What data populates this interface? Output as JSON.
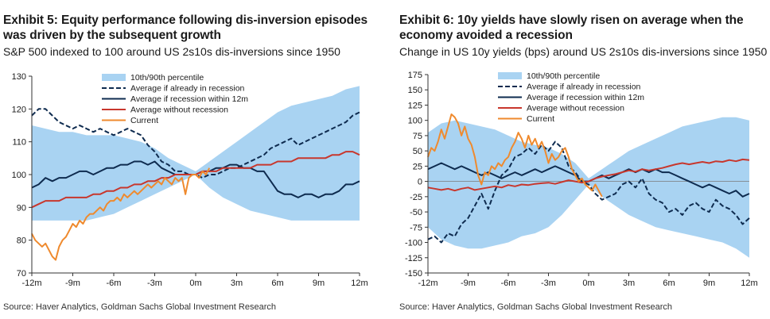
{
  "panels": [
    {
      "title": "Exhibit 5: Equity performance following dis-inversion episodes was driven by the subsequent growth",
      "subtitle": "S&P 500 indexed to 100 around US 2s10s dis-inversions since 1950",
      "source": "Source: Haver Analytics, Goldman Sachs Global Investment Research"
    },
    {
      "title": "Exhibit 6: 10y yields have slowly risen on average when the economy avoided a recession",
      "subtitle": "Change in US 10y yields (bps) around US 2s10s dis-inversions since 1950",
      "source": "Source: Haver Analytics, Goldman Sachs Global Investment Research"
    }
  ],
  "colors": {
    "band": "#a9d3f2",
    "already": "#0e2b4f",
    "within": "#0e2b4f",
    "without": "#c8372d",
    "current": "#ef8a2e"
  },
  "chart_data": [
    {
      "type": "line",
      "xlabel": "",
      "ylabel": "",
      "x_ticks": [
        "-12m",
        "-9m",
        "-6m",
        "-3m",
        "0m",
        "3m",
        "6m",
        "9m",
        "12m"
      ],
      "xlim": [
        -12,
        12
      ],
      "ylim": [
        70,
        130
      ],
      "y_ticks": [
        "130",
        "120",
        "110",
        "100",
        "90",
        "80",
        "70"
      ],
      "grid": false,
      "legend_position": "top-center",
      "legend": [
        "10th/90th percentile",
        "Average if already in recession",
        "Average if recession within 12m",
        "Average without recession",
        "Current"
      ],
      "band": {
        "name": "10th/90th percentile",
        "x": [
          -12,
          -11,
          -10,
          -9,
          -8,
          -7,
          -6,
          -5,
          -4,
          -3,
          -2,
          -1,
          0,
          1,
          2,
          3,
          4,
          5,
          6,
          7,
          8,
          9,
          10,
          11,
          12
        ],
        "upper": [
          115,
          114,
          113,
          113,
          112,
          112,
          112,
          111,
          110,
          108,
          105,
          103,
          101,
          104,
          107,
          110,
          113,
          116,
          119,
          121,
          122,
          123,
          124,
          126,
          127
        ],
        "lower": [
          86,
          86,
          86,
          86,
          86,
          87,
          88,
          90,
          92,
          94,
          96,
          98,
          100,
          96,
          93,
          91,
          89,
          88,
          87,
          86,
          86,
          86,
          86,
          86,
          86
        ]
      },
      "series": [
        {
          "name": "Average if already in recession",
          "style": "dashed",
          "x": [
            -12,
            -11.5,
            -11,
            -10.5,
            -10,
            -9.5,
            -9,
            -8.5,
            -8,
            -7.5,
            -7,
            -6.5,
            -6,
            -5.5,
            -5,
            -4.5,
            -4,
            -3.5,
            -3,
            -2.5,
            -2,
            -1.5,
            -1,
            -0.5,
            0,
            0.5,
            1,
            1.5,
            2,
            2.5,
            3,
            3.5,
            4,
            4.5,
            5,
            5.5,
            6,
            6.5,
            7,
            7.5,
            8,
            8.5,
            9,
            9.5,
            10,
            10.5,
            11,
            11.5,
            12
          ],
          "values": [
            118,
            120,
            120,
            118,
            116,
            115,
            114,
            115,
            114,
            113,
            114,
            113,
            112,
            113,
            114,
            113,
            112,
            109,
            107,
            104,
            103,
            101,
            101,
            100,
            100,
            99,
            100,
            100,
            101,
            102,
            102,
            103,
            104,
            105,
            106,
            108,
            109,
            110,
            111,
            109,
            110,
            111,
            112,
            113,
            114,
            115,
            116,
            118,
            119
          ]
        },
        {
          "name": "Average if recession within 12m",
          "style": "solid",
          "x": [
            -12,
            -11.5,
            -11,
            -10.5,
            -10,
            -9.5,
            -9,
            -8.5,
            -8,
            -7.5,
            -7,
            -6.5,
            -6,
            -5.5,
            -5,
            -4.5,
            -4,
            -3.5,
            -3,
            -2.5,
            -2,
            -1.5,
            -1,
            -0.5,
            0,
            0.5,
            1,
            1.5,
            2,
            2.5,
            3,
            3.5,
            4,
            4.5,
            5,
            5.5,
            6,
            6.5,
            7,
            7.5,
            8,
            8.5,
            9,
            9.5,
            10,
            10.5,
            11,
            11.5,
            12
          ],
          "values": [
            96,
            97,
            99,
            98,
            99,
            99,
            100,
            101,
            101,
            100,
            101,
            102,
            102,
            103,
            103,
            104,
            104,
            103,
            104,
            102,
            101,
            100,
            100,
            100,
            100,
            101,
            101,
            102,
            102,
            103,
            103,
            102,
            102,
            101,
            101,
            98,
            95,
            94,
            94,
            93,
            94,
            94,
            93,
            94,
            94,
            95,
            97,
            97,
            98
          ]
        },
        {
          "name": "Average without recession",
          "style": "solid",
          "x": [
            -12,
            -11.5,
            -11,
            -10.5,
            -10,
            -9.5,
            -9,
            -8.5,
            -8,
            -7.5,
            -7,
            -6.5,
            -6,
            -5.5,
            -5,
            -4.5,
            -4,
            -3.5,
            -3,
            -2.5,
            -2,
            -1.5,
            -1,
            -0.5,
            0,
            0.5,
            1,
            1.5,
            2,
            2.5,
            3,
            3.5,
            4,
            4.5,
            5,
            5.5,
            6,
            6.5,
            7,
            7.5,
            8,
            8.5,
            9,
            9.5,
            10,
            10.5,
            11,
            11.5,
            12
          ],
          "values": [
            90,
            91,
            92,
            92,
            92,
            93,
            93,
            93,
            93,
            94,
            94,
            95,
            95,
            96,
            96,
            97,
            97,
            98,
            98,
            99,
            99,
            100,
            100,
            100,
            100,
            101,
            101,
            101,
            102,
            102,
            102,
            102,
            102,
            103,
            103,
            103,
            104,
            104,
            104,
            105,
            105,
            105,
            105,
            105,
            106,
            106,
            107,
            107,
            106
          ]
        },
        {
          "name": "Current",
          "style": "solid",
          "x": [
            -12,
            -11.75,
            -11.5,
            -11.25,
            -11,
            -10.75,
            -10.5,
            -10.25,
            -10,
            -9.75,
            -9.5,
            -9.25,
            -9,
            -8.75,
            -8.5,
            -8.25,
            -8,
            -7.75,
            -7.5,
            -7.25,
            -7,
            -6.75,
            -6.5,
            -6.25,
            -6,
            -5.75,
            -5.5,
            -5.25,
            -5,
            -4.75,
            -4.5,
            -4.25,
            -4,
            -3.75,
            -3.5,
            -3.25,
            -3,
            -2.75,
            -2.5,
            -2.25,
            -2,
            -1.75,
            -1.5,
            -1.25,
            -1,
            -0.75,
            -0.5,
            -0.25,
            0,
            0.25,
            0.5,
            0.75,
            1
          ],
          "values": [
            82,
            80,
            79,
            78,
            79,
            77,
            75,
            74,
            78,
            80,
            81,
            83,
            85,
            84,
            86,
            85,
            87,
            88,
            88,
            89,
            90,
            89,
            91,
            92,
            92,
            93,
            92,
            94,
            93,
            94,
            95,
            94,
            95,
            96,
            97,
            96,
            97,
            98,
            97,
            99,
            98,
            97,
            99,
            98,
            99,
            94,
            99,
            100,
            100,
            99,
            101,
            100,
            102
          ]
        }
      ]
    },
    {
      "type": "line",
      "xlabel": "",
      "ylabel": "",
      "x_ticks": [
        "-12m",
        "-9m",
        "-6m",
        "-3m",
        "0m",
        "3m",
        "6m",
        "9m",
        "12m"
      ],
      "xlim": [
        -12,
        12
      ],
      "ylim": [
        -150,
        175
      ],
      "y_ticks": [
        "175",
        "150",
        "125",
        "100",
        "75",
        "50",
        "25",
        "0",
        "-25",
        "-50",
        "-75",
        "-100",
        "-125",
        "-150"
      ],
      "grid": false,
      "legend_position": "top-center",
      "legend": [
        "10th/90th percentile",
        "Average if already in recession",
        "Average if recession within 12m",
        "Average without recession",
        "Current"
      ],
      "band": {
        "name": "10th/90th percentile",
        "x": [
          -12,
          -11,
          -10,
          -9,
          -8,
          -7,
          -6,
          -5,
          -4,
          -3,
          -2,
          -1,
          0,
          1,
          2,
          3,
          4,
          5,
          6,
          7,
          8,
          9,
          10,
          11,
          12
        ],
        "upper": [
          80,
          95,
          100,
          95,
          90,
          85,
          75,
          65,
          60,
          55,
          45,
          30,
          5,
          20,
          35,
          50,
          60,
          70,
          80,
          90,
          95,
          100,
          105,
          105,
          100
        ],
        "lower": [
          -75,
          -95,
          -105,
          -110,
          -110,
          -105,
          -100,
          -90,
          -85,
          -75,
          -55,
          -30,
          -5,
          -25,
          -40,
          -55,
          -65,
          -75,
          -80,
          -85,
          -90,
          -95,
          -100,
          -110,
          -125
        ]
      },
      "series": [
        {
          "name": "Average if already in recession",
          "style": "dashed",
          "x": [
            -12,
            -11.5,
            -11,
            -10.5,
            -10,
            -9.5,
            -9,
            -8.5,
            -8,
            -7.5,
            -7,
            -6.5,
            -6,
            -5.5,
            -5,
            -4.5,
            -4,
            -3.5,
            -3,
            -2.5,
            -2,
            -1.5,
            -1,
            -0.5,
            0,
            0.5,
            1,
            1.5,
            2,
            2.5,
            3,
            3.5,
            4,
            4.5,
            5,
            5.5,
            6,
            6.5,
            7,
            7.5,
            8,
            8.5,
            9,
            9.5,
            10,
            10.5,
            11,
            11.5,
            12
          ],
          "values": [
            -95,
            -90,
            -100,
            -85,
            -90,
            -70,
            -60,
            -40,
            -20,
            -45,
            -15,
            10,
            20,
            40,
            45,
            55,
            45,
            60,
            50,
            65,
            55,
            25,
            15,
            0,
            -5,
            -20,
            -30,
            -25,
            -20,
            -5,
            0,
            -10,
            5,
            -20,
            -30,
            -35,
            -50,
            -45,
            -55,
            -40,
            -35,
            -45,
            -50,
            -30,
            -40,
            -45,
            -55,
            -70,
            -60
          ]
        },
        {
          "name": "Average if recession within 12m",
          "style": "solid",
          "x": [
            -12,
            -11.5,
            -11,
            -10.5,
            -10,
            -9.5,
            -9,
            -8.5,
            -8,
            -7.5,
            -7,
            -6.5,
            -6,
            -5.5,
            -5,
            -4.5,
            -4,
            -3.5,
            -3,
            -2.5,
            -2,
            -1.5,
            -1,
            -0.5,
            0,
            0.5,
            1,
            1.5,
            2,
            2.5,
            3,
            3.5,
            4,
            4.5,
            5,
            5.5,
            6,
            6.5,
            7,
            7.5,
            8,
            8.5,
            9,
            9.5,
            10,
            10.5,
            11,
            11.5,
            12
          ],
          "values": [
            20,
            25,
            30,
            25,
            20,
            25,
            20,
            15,
            10,
            15,
            10,
            5,
            10,
            15,
            10,
            15,
            20,
            15,
            20,
            25,
            20,
            15,
            10,
            0,
            0,
            5,
            10,
            5,
            10,
            15,
            20,
            15,
            20,
            15,
            20,
            15,
            15,
            10,
            5,
            0,
            -5,
            -10,
            -5,
            -10,
            -15,
            -20,
            -15,
            -25,
            -20
          ]
        },
        {
          "name": "Average without recession",
          "style": "solid",
          "x": [
            -12,
            -11.5,
            -11,
            -10.5,
            -10,
            -9.5,
            -9,
            -8.5,
            -8,
            -7.5,
            -7,
            -6.5,
            -6,
            -5.5,
            -5,
            -4.5,
            -4,
            -3.5,
            -3,
            -2.5,
            -2,
            -1.5,
            -1,
            -0.5,
            0,
            0.5,
            1,
            1.5,
            2,
            2.5,
            3,
            3.5,
            4,
            4.5,
            5,
            5.5,
            6,
            6.5,
            7,
            7.5,
            8,
            8.5,
            9,
            9.5,
            10,
            10.5,
            11,
            11.5,
            12
          ],
          "values": [
            -10,
            -12,
            -14,
            -12,
            -15,
            -12,
            -10,
            -14,
            -12,
            -10,
            -8,
            -10,
            -6,
            -8,
            -5,
            -6,
            -4,
            -3,
            -2,
            -4,
            -1,
            2,
            0,
            -2,
            0,
            5,
            8,
            10,
            12,
            15,
            18,
            16,
            20,
            18,
            20,
            22,
            25,
            28,
            30,
            28,
            30,
            32,
            30,
            33,
            32,
            35,
            33,
            36,
            35
          ]
        },
        {
          "name": "Current",
          "style": "solid",
          "x": [
            -12,
            -11.75,
            -11.5,
            -11.25,
            -11,
            -10.75,
            -10.5,
            -10.25,
            -10,
            -9.75,
            -9.5,
            -9.25,
            -9,
            -8.75,
            -8.5,
            -8.25,
            -8,
            -7.75,
            -7.5,
            -7.25,
            -7,
            -6.75,
            -6.5,
            -6.25,
            -6,
            -5.75,
            -5.5,
            -5.25,
            -5,
            -4.75,
            -4.5,
            -4.25,
            -4,
            -3.75,
            -3.5,
            -3.25,
            -3,
            -2.75,
            -2.5,
            -2.25,
            -2,
            -1.75,
            -1.5,
            -1.25,
            -1,
            -0.75,
            -0.5,
            -0.25,
            0,
            0.25,
            0.5,
            0.75,
            1
          ],
          "values": [
            40,
            55,
            50,
            65,
            85,
            70,
            90,
            110,
            105,
            95,
            75,
            90,
            70,
            60,
            40,
            10,
            -5,
            15,
            10,
            25,
            20,
            30,
            25,
            35,
            40,
            55,
            65,
            80,
            70,
            55,
            75,
            60,
            70,
            55,
            65,
            50,
            30,
            45,
            35,
            40,
            50,
            55,
            40,
            20,
            10,
            0,
            5,
            -5,
            -10,
            -15,
            -5,
            -15,
            -25
          ]
        }
      ]
    }
  ]
}
